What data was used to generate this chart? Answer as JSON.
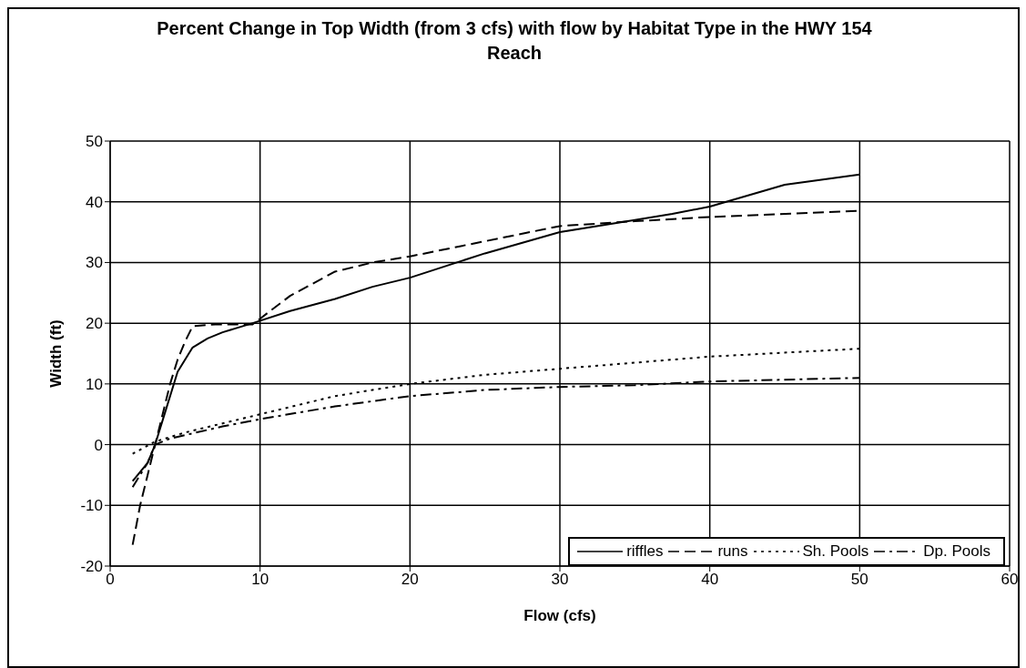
{
  "chart_data": {
    "type": "line",
    "title": "Percent Change in Top Width (from 3 cfs) with flow by Habitat Type in the HWY 154 Reach",
    "xlabel": "Flow (cfs)",
    "ylabel": "Width (ft)",
    "xlim": [
      0,
      60
    ],
    "xticks": [
      0,
      10,
      20,
      30,
      40,
      50,
      60
    ],
    "ylim": [
      -20,
      50
    ],
    "yticks": [
      -20,
      -10,
      0,
      10,
      20,
      30,
      40,
      50
    ],
    "grid": true,
    "legend": "bottom right",
    "marker": "none",
    "series": [
      {
        "name": "riffles",
        "color": "#000000",
        "line_style": "solid",
        "x": [
          1.5,
          2.5,
          3,
          3.5,
          4.5,
          5.5,
          6.5,
          7.5,
          9.5,
          12,
          15,
          17.5,
          20,
          25,
          30,
          35,
          37.5,
          40,
          45,
          50
        ],
        "values": [
          -6,
          -3,
          0,
          4,
          12,
          16,
          17.5,
          18.5,
          20,
          22,
          24,
          26,
          27.5,
          31.5,
          35,
          37,
          38,
          39.2,
          42.8,
          44.5
        ]
      },
      {
        "name": "runs",
        "color": "#000000",
        "line_style": "dashed",
        "x": [
          1.5,
          2,
          2.5,
          3,
          3.5,
          4,
          4.5,
          5,
          5.5,
          7,
          9.5,
          12,
          15,
          17.5,
          20,
          25,
          30,
          35,
          40,
          50
        ],
        "values": [
          -16.5,
          -10,
          -5,
          0,
          5,
          10,
          14,
          17,
          19.5,
          19.8,
          19.8,
          24.5,
          28.5,
          30,
          31,
          33.5,
          36,
          36.8,
          37.5,
          38.5
        ]
      },
      {
        "name": "Sh. Pools",
        "color": "#000000",
        "line_style": "dotted",
        "x": [
          1.5,
          3,
          5,
          7.5,
          10,
          15,
          20,
          25,
          30,
          40,
          50
        ],
        "values": [
          -1.5,
          0.5,
          2,
          3.5,
          5,
          8,
          10,
          11.5,
          12.5,
          14.5,
          15.8
        ]
      },
      {
        "name": "Dp. Pools",
        "color": "#000000",
        "line_style": "dashdot",
        "x": [
          1.5,
          2.5,
          3,
          4,
          7.5,
          10,
          15,
          20,
          25,
          30,
          35,
          40,
          50
        ],
        "values": [
          -7,
          -3,
          0,
          1,
          3,
          4.2,
          6.3,
          8,
          9,
          9.5,
          9.8,
          10.4,
          11
        ]
      }
    ]
  }
}
